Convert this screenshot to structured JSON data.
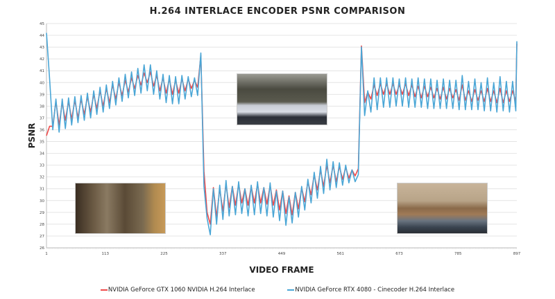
{
  "chart_data": {
    "type": "line",
    "title": "H.264 INTERLACE ENCODER PSNR COMPARISON",
    "xlabel": "VIDEO FRAME",
    "ylabel": "PSNR",
    "xlim": [
      1,
      897
    ],
    "ylim": [
      26,
      45
    ],
    "x_ticks": [
      1,
      113,
      225,
      337,
      449,
      561,
      673,
      785,
      897
    ],
    "y_ticks": [
      26,
      27,
      28,
      29,
      30,
      31,
      32,
      33,
      34,
      35,
      36,
      37,
      38,
      39,
      40,
      41,
      42,
      43,
      44,
      45
    ],
    "grid": "horizontal",
    "legend_position": "bottom",
    "x": [
      1,
      7,
      13,
      19,
      25,
      31,
      37,
      43,
      49,
      55,
      61,
      67,
      73,
      79,
      85,
      91,
      97,
      103,
      109,
      115,
      121,
      127,
      133,
      139,
      145,
      151,
      157,
      163,
      169,
      175,
      181,
      187,
      193,
      199,
      205,
      211,
      217,
      223,
      229,
      235,
      241,
      247,
      253,
      259,
      265,
      271,
      277,
      283,
      289,
      295,
      301,
      307,
      313,
      319,
      325,
      331,
      337,
      343,
      349,
      355,
      361,
      367,
      373,
      379,
      385,
      391,
      397,
      403,
      409,
      415,
      421,
      427,
      433,
      439,
      445,
      451,
      457,
      463,
      469,
      475,
      481,
      487,
      493,
      499,
      505,
      511,
      517,
      523,
      529,
      535,
      541,
      547,
      553,
      559,
      565,
      571,
      577,
      583,
      589,
      595,
      601,
      607,
      613,
      619,
      625,
      631,
      637,
      643,
      649,
      655,
      661,
      667,
      673,
      679,
      685,
      691,
      697,
      703,
      709,
      715,
      721,
      727,
      733,
      739,
      745,
      751,
      757,
      763,
      769,
      775,
      781,
      787,
      793,
      799,
      805,
      811,
      817,
      823,
      829,
      835,
      841,
      847,
      853,
      859,
      865,
      871,
      877,
      883,
      889,
      895,
      897
    ],
    "series": [
      {
        "name": "NVIDIA GeForce GTX 1060 NVIDIA H.264 Interlace",
        "color": "#f04a4a",
        "values": [
          35.5,
          36.3,
          36.3,
          38.4,
          36.4,
          38.3,
          36.8,
          38.4,
          36.9,
          38.5,
          37.0,
          38.6,
          37.3,
          38.8,
          37.5,
          39.0,
          37.8,
          39.3,
          38.0,
          39.5,
          38.3,
          39.8,
          38.6,
          40.0,
          38.9,
          40.2,
          39.2,
          40.4,
          39.5,
          40.6,
          39.8,
          40.8,
          40.0,
          40.9,
          39.7,
          40.6,
          39.3,
          40.4,
          39.1,
          40.3,
          39.0,
          40.2,
          39.1,
          40.3,
          39.3,
          40.3,
          39.5,
          40.2,
          39.6,
          42.3,
          32.5,
          29.0,
          28.0,
          31.1,
          28.6,
          31.0,
          29.1,
          31.4,
          29.4,
          31.2,
          29.6,
          31.4,
          29.8,
          31.0,
          29.6,
          31.2,
          29.8,
          31.4,
          29.8,
          31.1,
          29.7,
          31.3,
          29.6,
          30.9,
          29.2,
          30.8,
          28.9,
          30.4,
          28.8,
          30.7,
          29.3,
          31.1,
          29.9,
          31.6,
          30.5,
          32.2,
          30.9,
          32.6,
          31.2,
          33.0,
          31.5,
          33.0,
          31.6,
          32.9,
          31.8,
          32.8,
          31.9,
          32.6,
          32.1,
          32.7,
          43.1,
          38.3,
          39.2,
          38.6,
          39.8,
          38.9,
          39.9,
          39.0,
          39.9,
          39.0,
          39.9,
          39.0,
          39.8,
          39.0,
          39.9,
          38.9,
          39.8,
          38.8,
          39.7,
          38.7,
          39.7,
          38.8,
          39.6,
          38.7,
          39.5,
          38.6,
          39.6,
          38.6,
          39.5,
          38.7,
          39.4,
          38.5,
          39.8,
          38.5,
          39.3,
          38.4,
          39.4,
          38.5,
          39.3,
          38.4,
          39.5,
          38.4,
          39.3,
          38.3,
          39.5,
          38.3,
          39.3,
          38.4,
          39.3,
          38.4,
          43.3
        ]
      },
      {
        "name": "NVIDIA GeForce RTX 4080 - Cinecoder H.264 Interlace",
        "color": "#4aa6d6",
        "values": [
          44.2,
          40.3,
          36.0,
          38.6,
          35.8,
          38.6,
          36.1,
          38.7,
          36.4,
          38.8,
          36.6,
          38.9,
          36.8,
          39.1,
          37.0,
          39.3,
          37.3,
          39.6,
          37.5,
          39.8,
          37.8,
          40.1,
          38.1,
          40.4,
          38.4,
          40.7,
          38.7,
          40.9,
          38.9,
          41.2,
          39.1,
          41.5,
          39.3,
          41.5,
          39.0,
          41.0,
          38.6,
          40.7,
          38.3,
          40.6,
          38.2,
          40.5,
          38.2,
          40.6,
          38.6,
          40.5,
          38.8,
          40.4,
          38.9,
          42.5,
          31.2,
          28.5,
          27.1,
          31.0,
          28.0,
          31.3,
          28.4,
          31.7,
          28.7,
          31.2,
          28.8,
          31.6,
          28.9,
          31.0,
          28.7,
          31.3,
          28.8,
          31.6,
          28.9,
          31.1,
          28.7,
          31.5,
          28.6,
          30.8,
          28.3,
          30.8,
          27.9,
          30.3,
          28.1,
          30.7,
          28.6,
          31.2,
          29.2,
          31.8,
          29.8,
          32.4,
          30.2,
          32.9,
          30.6,
          33.5,
          30.9,
          33.3,
          31.1,
          33.2,
          31.3,
          33.0,
          31.5,
          32.6,
          31.6,
          32.2,
          43.0,
          37.2,
          39.3,
          37.5,
          40.4,
          37.7,
          40.4,
          37.9,
          40.4,
          37.9,
          40.4,
          38.0,
          40.3,
          38.0,
          40.4,
          37.9,
          40.3,
          37.9,
          40.4,
          37.9,
          40.3,
          37.8,
          40.3,
          37.8,
          40.2,
          37.8,
          40.3,
          37.8,
          40.2,
          37.8,
          40.2,
          37.7,
          40.6,
          37.7,
          40.1,
          37.7,
          40.3,
          37.7,
          40.0,
          37.6,
          40.4,
          37.6,
          40.0,
          37.5,
          40.5,
          37.6,
          40.1,
          37.5,
          40.1,
          37.6,
          43.5
        ]
      }
    ]
  },
  "colors": {
    "grid": "#e4e4e4",
    "axis": "#bdbdbd",
    "text": "#222222"
  }
}
